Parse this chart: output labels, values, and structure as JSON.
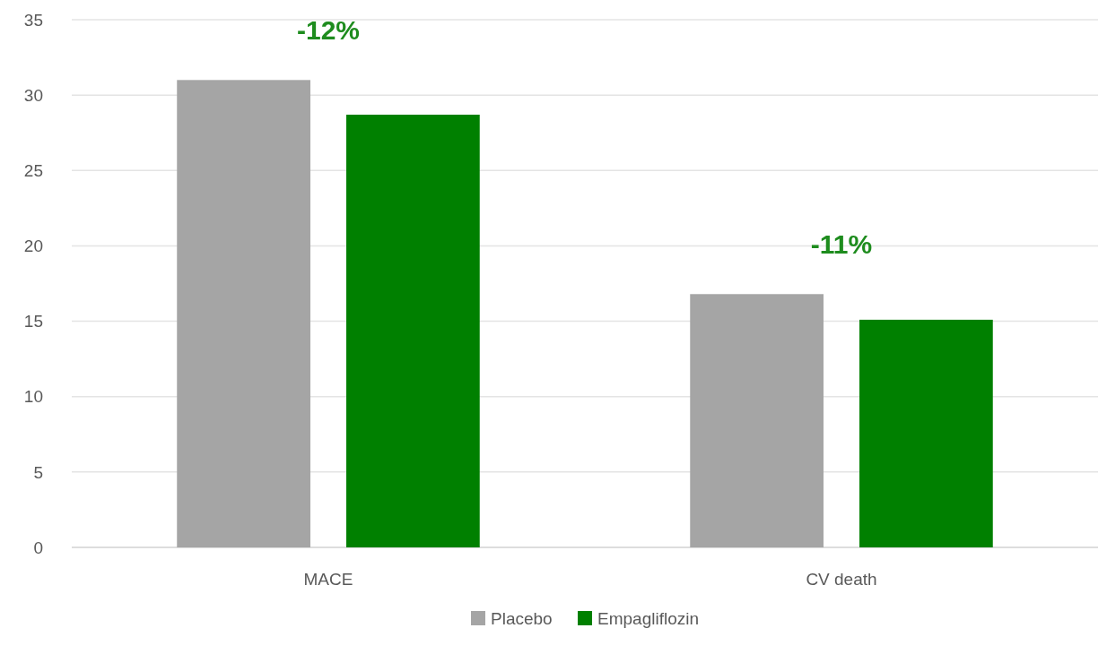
{
  "chart_data": {
    "type": "bar",
    "categories": [
      "MACE",
      "CV death"
    ],
    "series": [
      {
        "name": "Placebo",
        "color": "#a5a5a5",
        "values": [
          31.0,
          16.8
        ]
      },
      {
        "name": "Empagliflozin",
        "color": "#008000",
        "values": [
          28.7,
          15.1
        ]
      }
    ],
    "ylim": [
      0,
      35
    ],
    "yticks": [
      0,
      5,
      10,
      15,
      20,
      25,
      30,
      35
    ],
    "grid": "y",
    "legend": "bottom",
    "annotations": [
      "-12%",
      "-11%"
    ]
  }
}
